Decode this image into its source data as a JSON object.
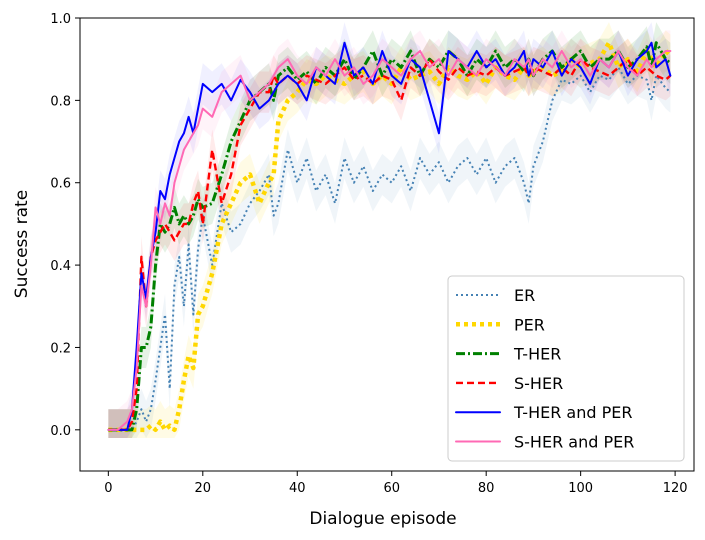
{
  "chart_data": {
    "type": "line",
    "xlabel": "Dialogue episode",
    "ylabel": "Success rate",
    "xlim": [
      -6,
      124
    ],
    "ylim": [
      -0.1,
      1.0
    ],
    "xticks": [
      0,
      20,
      40,
      60,
      80,
      100,
      120
    ],
    "yticks": [
      0.0,
      0.2,
      0.4,
      0.6,
      0.8,
      1.0
    ],
    "ytick_labels": [
      "0.0",
      "0.2",
      "0.4",
      "0.6",
      "0.8",
      "1.0"
    ],
    "grid": false,
    "legend_position": "lower-right",
    "x": [
      0,
      2,
      4,
      5,
      6,
      7,
      8,
      9,
      10,
      11,
      12,
      13,
      14,
      15,
      16,
      17,
      18,
      19,
      20,
      22,
      24,
      26,
      28,
      30,
      32,
      34,
      35,
      36,
      38,
      40,
      42,
      44,
      46,
      48,
      50,
      52,
      54,
      56,
      58,
      60,
      62,
      64,
      66,
      68,
      70,
      72,
      74,
      76,
      78,
      80,
      82,
      84,
      86,
      88,
      89,
      90,
      92,
      94,
      96,
      98,
      100,
      102,
      104,
      106,
      108,
      110,
      112,
      114,
      115,
      116,
      118,
      119
    ],
    "series": [
      {
        "name": "ER",
        "color": "#4682b4",
        "style": "dotted",
        "band_opacity": 0.08,
        "values": [
          0,
          0,
          0,
          0,
          0.02,
          0.05,
          0.02,
          0.05,
          0.12,
          0.2,
          0.28,
          0.1,
          0.35,
          0.42,
          0.3,
          0.45,
          0.28,
          0.44,
          0.52,
          0.4,
          0.55,
          0.48,
          0.5,
          0.55,
          0.58,
          0.62,
          0.52,
          0.55,
          0.68,
          0.6,
          0.66,
          0.58,
          0.62,
          0.55,
          0.66,
          0.6,
          0.64,
          0.58,
          0.62,
          0.6,
          0.64,
          0.58,
          0.66,
          0.62,
          0.65,
          0.6,
          0.64,
          0.66,
          0.62,
          0.66,
          0.6,
          0.64,
          0.66,
          0.6,
          0.55,
          0.64,
          0.7,
          0.8,
          0.85,
          0.84,
          0.86,
          0.82,
          0.86,
          0.85,
          0.88,
          0.84,
          0.86,
          0.85,
          0.8,
          0.86,
          0.83,
          0.82
        ]
      },
      {
        "name": "PER",
        "color": "#ffd700",
        "style": "dotted-thick",
        "band_opacity": 0.1,
        "values": [
          0,
          0,
          0,
          0,
          0,
          0,
          0,
          0.01,
          0,
          0.02,
          0,
          0.01,
          0,
          0.05,
          0.12,
          0.18,
          0.15,
          0.28,
          0.3,
          0.38,
          0.5,
          0.55,
          0.6,
          0.62,
          0.55,
          0.6,
          0.62,
          0.75,
          0.8,
          0.82,
          0.85,
          0.84,
          0.86,
          0.85,
          0.84,
          0.86,
          0.87,
          0.84,
          0.86,
          0.84,
          0.88,
          0.85,
          0.86,
          0.87,
          0.84,
          0.88,
          0.86,
          0.85,
          0.87,
          0.84,
          0.88,
          0.86,
          0.85,
          0.88,
          0.86,
          0.87,
          0.88,
          0.86,
          0.87,
          0.9,
          0.88,
          0.89,
          0.9,
          0.94,
          0.88,
          0.9,
          0.87,
          0.92,
          0.9,
          0.88,
          0.92,
          0.91
        ]
      },
      {
        "name": "T-HER",
        "color": "#008000",
        "style": "dashdot",
        "band_opacity": 0.1,
        "values": [
          0,
          0,
          0,
          0,
          0.05,
          0.2,
          0.2,
          0.25,
          0.4,
          0.5,
          0.48,
          0.5,
          0.54,
          0.5,
          0.52,
          0.5,
          0.52,
          0.56,
          0.54,
          0.55,
          0.62,
          0.7,
          0.75,
          0.8,
          0.82,
          0.84,
          0.8,
          0.86,
          0.88,
          0.85,
          0.87,
          0.84,
          0.88,
          0.86,
          0.9,
          0.85,
          0.88,
          0.92,
          0.86,
          0.9,
          0.88,
          0.92,
          0.86,
          0.9,
          0.88,
          0.92,
          0.9,
          0.86,
          0.9,
          0.88,
          0.92,
          0.88,
          0.9,
          0.87,
          0.9,
          0.86,
          0.9,
          0.92,
          0.88,
          0.9,
          0.92,
          0.88,
          0.9,
          0.9,
          0.92,
          0.88,
          0.9,
          0.93,
          0.88,
          0.94,
          0.9,
          0.89
        ]
      },
      {
        "name": "S-HER",
        "color": "#ff0000",
        "style": "dashed",
        "band_opacity": 0.08,
        "values": [
          0,
          0,
          0,
          0.02,
          0.1,
          0.42,
          0.3,
          0.42,
          0.46,
          0.48,
          0.5,
          0.48,
          0.46,
          0.48,
          0.5,
          0.5,
          0.55,
          0.58,
          0.5,
          0.68,
          0.55,
          0.62,
          0.74,
          0.78,
          0.82,
          0.82,
          0.86,
          0.84,
          0.86,
          0.84,
          0.86,
          0.85,
          0.84,
          0.86,
          0.88,
          0.85,
          0.86,
          0.84,
          0.86,
          0.85,
          0.8,
          0.88,
          0.86,
          0.9,
          0.87,
          0.85,
          0.88,
          0.86,
          0.87,
          0.86,
          0.88,
          0.86,
          0.87,
          0.88,
          0.86,
          0.88,
          0.87,
          0.86,
          0.88,
          0.86,
          0.9,
          0.88,
          0.87,
          0.86,
          0.88,
          0.9,
          0.86,
          0.88,
          0.87,
          0.86,
          0.85,
          0.86
        ]
      },
      {
        "name": "T-HER and PER",
        "color": "#0000ff",
        "style": "solid",
        "band_opacity": 0.06,
        "values": [
          0,
          0,
          0,
          0.05,
          0.2,
          0.38,
          0.32,
          0.42,
          0.48,
          0.58,
          0.56,
          0.62,
          0.66,
          0.7,
          0.72,
          0.76,
          0.72,
          0.78,
          0.84,
          0.82,
          0.84,
          0.8,
          0.85,
          0.82,
          0.78,
          0.8,
          0.82,
          0.84,
          0.86,
          0.84,
          0.8,
          0.88,
          0.86,
          0.84,
          0.94,
          0.86,
          0.88,
          0.84,
          0.92,
          0.86,
          0.84,
          0.9,
          0.88,
          0.8,
          0.72,
          0.92,
          0.9,
          0.88,
          0.92,
          0.88,
          0.9,
          0.86,
          0.88,
          0.92,
          0.86,
          0.9,
          0.88,
          0.92,
          0.86,
          0.9,
          0.88,
          0.84,
          0.9,
          0.88,
          0.92,
          0.86,
          0.9,
          0.92,
          0.94,
          0.88,
          0.9,
          0.86
        ]
      },
      {
        "name": "S-HER and PER",
        "color": "#ff69b4",
        "style": "solid",
        "band_opacity": 0.08,
        "values": [
          0,
          0,
          0.02,
          0.05,
          0.15,
          0.35,
          0.3,
          0.4,
          0.54,
          0.5,
          0.55,
          0.52,
          0.6,
          0.64,
          0.68,
          0.7,
          0.72,
          0.74,
          0.78,
          0.76,
          0.82,
          0.84,
          0.86,
          0.8,
          0.82,
          0.84,
          0.86,
          0.88,
          0.9,
          0.86,
          0.84,
          0.88,
          0.86,
          0.9,
          0.86,
          0.88,
          0.84,
          0.86,
          0.9,
          0.88,
          0.86,
          0.9,
          0.92,
          0.88,
          0.9,
          0.86,
          0.9,
          0.88,
          0.86,
          0.9,
          0.88,
          0.86,
          0.9,
          0.88,
          0.9,
          0.86,
          0.9,
          0.88,
          0.92,
          0.88,
          0.9,
          0.86,
          0.9,
          0.88,
          0.92,
          0.88,
          0.86,
          0.9,
          0.88,
          0.9,
          0.92,
          0.92
        ]
      }
    ]
  }
}
